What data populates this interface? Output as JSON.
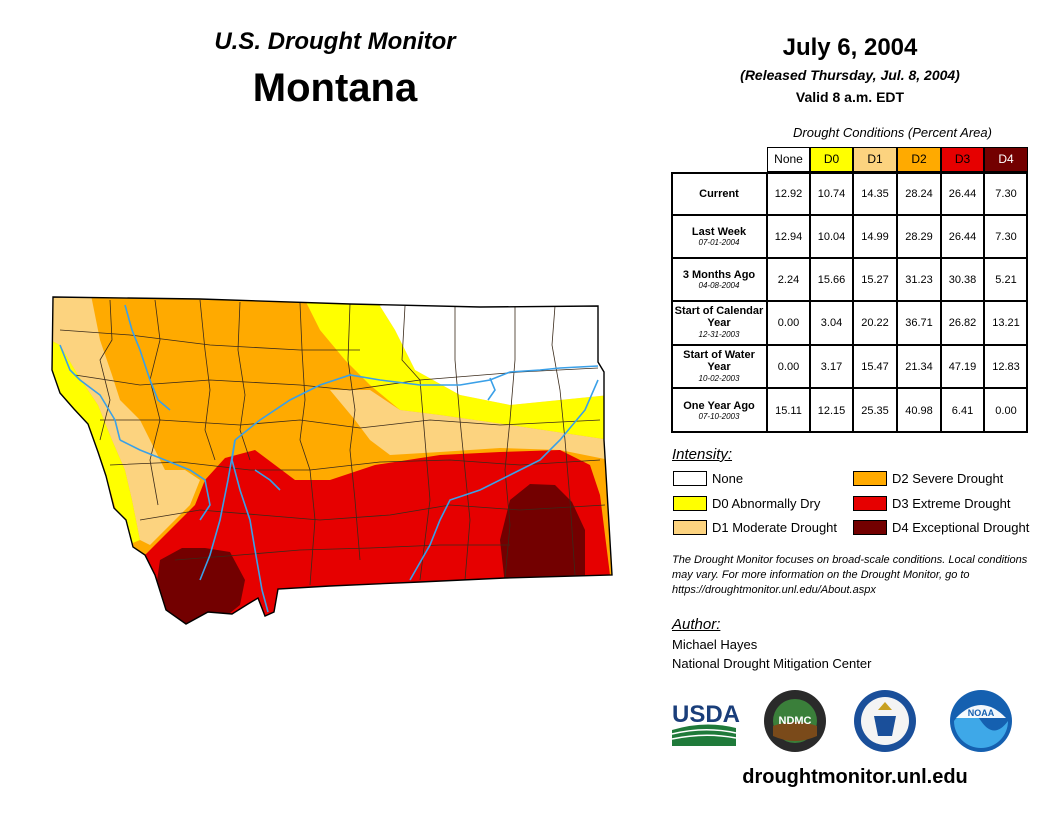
{
  "header": {
    "title_line1": "U.S. Drought Monitor",
    "title_line2": "Montana",
    "date": "July 6, 2004",
    "released": "(Released Thursday, Jul. 8, 2004)",
    "valid": "Valid 8 a.m. EDT"
  },
  "table": {
    "title": "Drought Conditions (Percent Area)",
    "columns": [
      "None",
      "D0",
      "D1",
      "D2",
      "D3",
      "D4"
    ],
    "rows": [
      {
        "label": "Current",
        "date": "",
        "values": [
          "12.92",
          "10.74",
          "14.35",
          "28.24",
          "26.44",
          "7.30"
        ]
      },
      {
        "label": "Last Week",
        "date": "07-01-2004",
        "values": [
          "12.94",
          "10.04",
          "14.99",
          "28.29",
          "26.44",
          "7.30"
        ]
      },
      {
        "label": "3 Months Ago",
        "date": "04-08-2004",
        "values": [
          "2.24",
          "15.66",
          "15.27",
          "31.23",
          "30.38",
          "5.21"
        ]
      },
      {
        "label": "Start of Calendar Year",
        "date": "12-31-2003",
        "values": [
          "0.00",
          "3.04",
          "20.22",
          "36.71",
          "26.82",
          "13.21"
        ]
      },
      {
        "label": "Start of Water Year",
        "date": "10-02-2003",
        "values": [
          "0.00",
          "3.17",
          "15.47",
          "21.34",
          "47.19",
          "12.83"
        ]
      },
      {
        "label": "One Year Ago",
        "date": "07-10-2003",
        "values": [
          "15.11",
          "12.15",
          "25.35",
          "40.98",
          "6.41",
          "0.00"
        ]
      }
    ]
  },
  "colors": {
    "none": "#ffffff",
    "d0": "#ffff00",
    "d1": "#fcd37f",
    "d2": "#ffaa00",
    "d3": "#e60000",
    "d4": "#730000",
    "river": "#3aa0e8",
    "county_line": "#3a2a1a"
  },
  "legend": {
    "title": "Intensity:",
    "items": [
      {
        "key": "none",
        "label": "None"
      },
      {
        "key": "d0",
        "label": "D0 Abnormally Dry"
      },
      {
        "key": "d1",
        "label": "D1 Moderate Drought"
      },
      {
        "key": "d2",
        "label": "D2 Severe Drought"
      },
      {
        "key": "d3",
        "label": "D3 Extreme Drought"
      },
      {
        "key": "d4",
        "label": "D4 Exceptional Drought"
      }
    ]
  },
  "note": "The Drought Monitor focuses on broad-scale conditions. Local conditions may vary. For more information on the Drought Monitor, go to https://droughtmonitor.unl.edu/About.aspx",
  "author": {
    "title": "Author:",
    "name": "Michael Hayes",
    "org": "National Drought Mitigation Center"
  },
  "logos": {
    "usda": "USDA",
    "ndmc": "NDMC",
    "noaa": "NOAA"
  },
  "website": "droughtmonitor.unl.edu"
}
